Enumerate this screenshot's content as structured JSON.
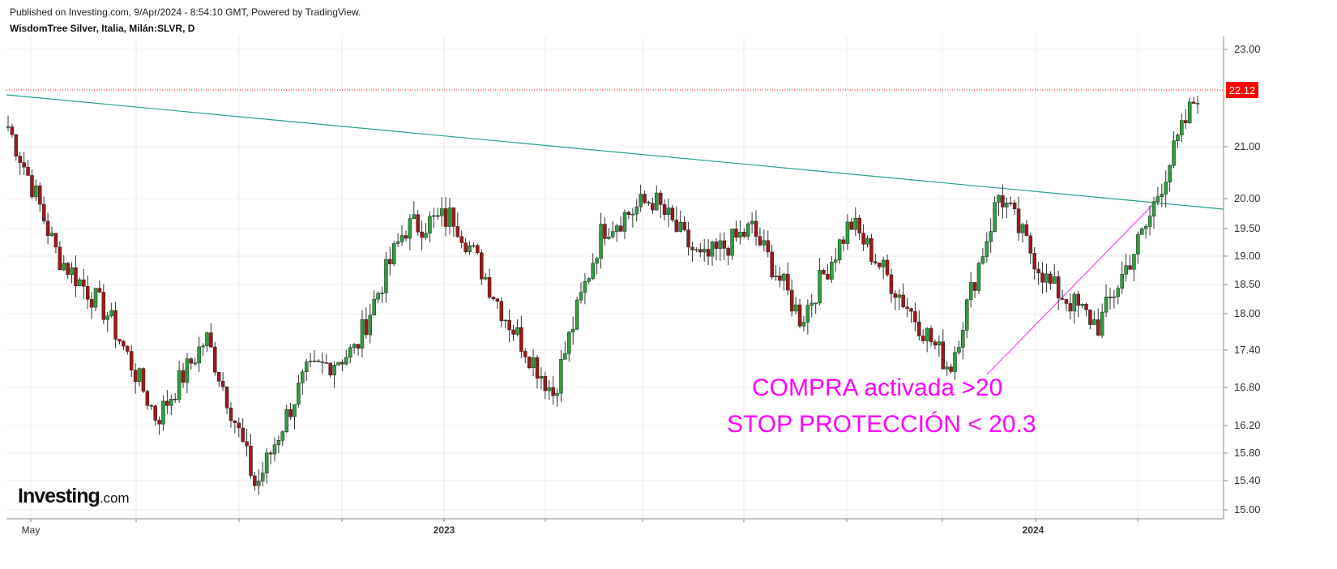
{
  "header": {
    "published": "Published on Investing.com, 9/Apr/2024 - 8:54:10 GMT, Powered by TradingView.",
    "symbol": "WisdomTree Silver, Italia, Milán:SLVR, D"
  },
  "logo": {
    "brand": "Investing",
    "suffix": ".com"
  },
  "chart_data": {
    "type": "candlestick",
    "y_axis_scale": "log",
    "y_ticks": [
      "23.00",
      "21.00",
      "20.00",
      "19.50",
      "19.00",
      "18.50",
      "18.00",
      "17.40",
      "16.80",
      "16.20",
      "15.80",
      "15.40",
      "15.00"
    ],
    "x_ticks": [
      "May",
      "2023",
      "2024"
    ],
    "last_price": "22.12",
    "last_price_color": "#ff0000",
    "up_color": "#2e9e3f",
    "down_color": "#9a1a1a",
    "trendline_color": "#2a9d8f",
    "support_line_color": "#ff44ff",
    "annotations": [
      "COMPRA activada >20",
      "STOP PROTECCIÓN < 20.3"
    ],
    "series_close_approx": [
      {
        "x": "2022-04",
        "y": 21.4
      },
      {
        "x": "2022-05",
        "y": 19.0
      },
      {
        "x": "2022-06",
        "y": 18.0
      },
      {
        "x": "2022-07",
        "y": 16.3
      },
      {
        "x": "2022-08",
        "y": 17.6
      },
      {
        "x": "2022-09",
        "y": 15.3
      },
      {
        "x": "2022-10",
        "y": 17.0
      },
      {
        "x": "2022-11",
        "y": 17.4
      },
      {
        "x": "2022-12",
        "y": 19.5
      },
      {
        "x": "2023-01",
        "y": 19.7
      },
      {
        "x": "2023-02",
        "y": 18.0
      },
      {
        "x": "2023-03",
        "y": 16.7
      },
      {
        "x": "2023-04",
        "y": 19.5
      },
      {
        "x": "2023-05",
        "y": 20.0
      },
      {
        "x": "2023-06",
        "y": 18.9
      },
      {
        "x": "2023-07",
        "y": 19.5
      },
      {
        "x": "2023-08",
        "y": 17.9
      },
      {
        "x": "2023-09",
        "y": 19.6
      },
      {
        "x": "2023-10",
        "y": 18.3
      },
      {
        "x": "2023-11",
        "y": 17.1
      },
      {
        "x": "2023-12",
        "y": 20.1
      },
      {
        "x": "2024-01",
        "y": 18.5
      },
      {
        "x": "2024-02",
        "y": 17.8
      },
      {
        "x": "2024-03",
        "y": 19.6
      },
      {
        "x": "2024-04",
        "y": 22.1
      }
    ]
  }
}
